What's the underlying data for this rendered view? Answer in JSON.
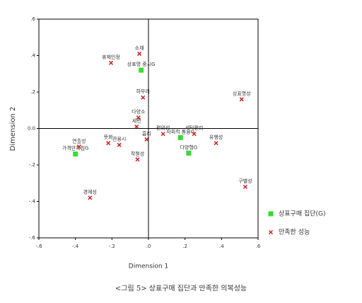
{
  "chart_data": {
    "type": "scatter",
    "x_label": "Dimension 1",
    "y_label": "Dimension 2",
    "caption": "<그림 5> 상표구매 집단과 만족한 의복성능",
    "xlim": [
      -0.6,
      0.6
    ],
    "ylim": [
      -0.6,
      0.6
    ],
    "xticks": [
      {
        "value": -0.6,
        "label": "-.6"
      },
      {
        "value": -0.4,
        "label": "-.4"
      },
      {
        "value": -0.2,
        "label": "-.2"
      },
      {
        "value": 0,
        "label": ".0"
      },
      {
        "value": 0.2,
        "label": ".2"
      },
      {
        "value": 0.4,
        "label": ".4"
      },
      {
        "value": 0.6,
        "label": ".6"
      }
    ],
    "yticks": [
      {
        "value": 0.6,
        "label": ".6"
      },
      {
        "value": 0.4,
        "label": ".4"
      },
      {
        "value": 0.2,
        "label": ".2"
      },
      {
        "value": 0,
        "label": "0.0"
      },
      {
        "value": -0.2,
        "label": "-.2"
      },
      {
        "value": -0.4,
        "label": "-.4"
      },
      {
        "value": -0.6,
        "label": "-.6"
      }
    ],
    "series": [
      {
        "name": "상표구매 집단(G)",
        "color": "#33dd33",
        "marker": "square",
        "labels": [
          "상표명 중시G",
          "가격만족집G",
          "사회적 통용G",
          "다양형G"
        ],
        "x": [
          -0.04,
          -0.4,
          0.175,
          0.22
        ],
        "values": [
          0.32,
          -0.14,
          -0.05,
          -0.135
        ]
      },
      {
        "name": "만족한 성능",
        "color": "#cc2222",
        "marker": "x",
        "labels": [
          "소재",
          "휴제인정",
          "하무리",
          "다양소",
          "세련",
          "편의성",
          "흡리",
          "세탁편리",
          "유행성",
          "상표명성",
          "구별성",
          "뜻화",
          "관용시",
          "착절성",
          "경제성",
          "연출성"
        ],
        "x": [
          -0.05,
          -0.205,
          -0.03,
          -0.055,
          -0.065,
          0.08,
          -0.01,
          0.25,
          0.37,
          0.51,
          0.53,
          -0.22,
          -0.16,
          -0.06,
          -0.32,
          -0.38
        ],
        "values": [
          0.41,
          0.36,
          0.17,
          0.06,
          0.01,
          -0.03,
          -0.06,
          -0.03,
          -0.08,
          0.16,
          -0.32,
          -0.08,
          -0.09,
          -0.17,
          -0.38,
          -0.1
        ]
      }
    ]
  }
}
